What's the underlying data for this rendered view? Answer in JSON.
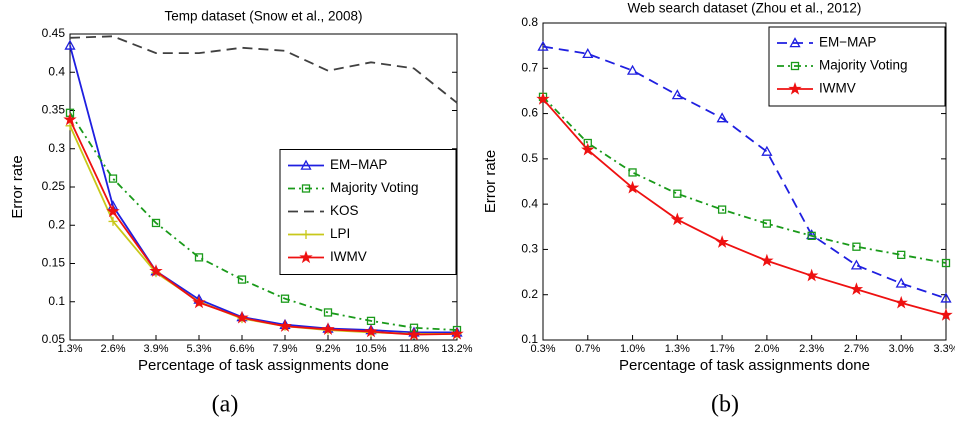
{
  "chart_data": [
    {
      "type": "line",
      "title": "Temp dataset (Snow et al., 2008)",
      "x_label": "Percentage of task assignments done",
      "y_label": "Error rate",
      "caption": "(a)",
      "categories": [
        "1.3%",
        "2.6%",
        "3.9%",
        "5.3%",
        "6.6%",
        "7.9%",
        "9.2%",
        "10.5%",
        "11.8%",
        "13.2%"
      ],
      "ylim": [
        0.05,
        0.45
      ],
      "yticks": [
        0.05,
        0.1,
        0.15,
        0.2,
        0.25,
        0.3,
        0.35,
        0.4,
        0.45
      ],
      "grid": false,
      "legend": "center right",
      "series": [
        {
          "name": "EM−MAP",
          "color": "#1f1fe0",
          "dash": "solid",
          "marker": "triangle",
          "values": [
            0.435,
            0.225,
            0.14,
            0.103,
            0.08,
            0.07,
            0.065,
            0.063,
            0.06,
            0.06
          ]
        },
        {
          "name": "Majority Voting",
          "color": "#1a9a1a",
          "dash": "dashdot",
          "marker": "square",
          "values": [
            0.347,
            0.261,
            0.203,
            0.158,
            0.129,
            0.104,
            0.086,
            0.075,
            0.066,
            0.063
          ]
        },
        {
          "name": "KOS",
          "color": "#404040",
          "dash": "dashed",
          "marker": "none",
          "values": [
            0.445,
            0.447,
            0.425,
            0.425,
            0.432,
            0.428,
            0.402,
            0.413,
            0.405,
            0.36
          ]
        },
        {
          "name": "LPI",
          "color": "#c8c81a",
          "dash": "solid",
          "marker": "plus",
          "values": [
            0.33,
            0.205,
            0.138,
            0.1,
            0.078,
            0.068,
            0.063,
            0.06,
            0.058,
            0.058
          ]
        },
        {
          "name": "IWMV",
          "color": "#ee1111",
          "dash": "solid",
          "marker": "star",
          "values": [
            0.338,
            0.218,
            0.14,
            0.099,
            0.079,
            0.068,
            0.064,
            0.061,
            0.057,
            0.058
          ]
        }
      ]
    },
    {
      "type": "line",
      "title": "Web search dataset (Zhou et al., 2012)",
      "x_label": "Percentage of task assignments done",
      "y_label": "Error rate",
      "caption": "(b)",
      "categories": [
        "0.3%",
        "0.7%",
        "1.0%",
        "1.3%",
        "1.7%",
        "2.0%",
        "2.3%",
        "2.7%",
        "3.0%",
        "3.3%"
      ],
      "ylim": [
        0.1,
        0.8
      ],
      "yticks": [
        0.1,
        0.2,
        0.3,
        0.4,
        0.5,
        0.6,
        0.7,
        0.8
      ],
      "grid": false,
      "legend": "upper right",
      "series": [
        {
          "name": "EM−MAP",
          "color": "#1f1fe0",
          "dash": "dashed",
          "marker": "triangle",
          "values": [
            0.748,
            0.732,
            0.695,
            0.641,
            0.59,
            0.516,
            0.332,
            0.265,
            0.225,
            0.192
          ]
        },
        {
          "name": "Majority Voting",
          "color": "#1a9a1a",
          "dash": "dashdot",
          "marker": "square",
          "values": [
            0.637,
            0.535,
            0.47,
            0.423,
            0.388,
            0.357,
            0.33,
            0.306,
            0.288,
            0.27
          ]
        },
        {
          "name": "IWMV",
          "color": "#ee1111",
          "dash": "solid",
          "marker": "star",
          "values": [
            0.632,
            0.52,
            0.436,
            0.366,
            0.316,
            0.275,
            0.242,
            0.212,
            0.182,
            0.155
          ]
        }
      ]
    }
  ]
}
